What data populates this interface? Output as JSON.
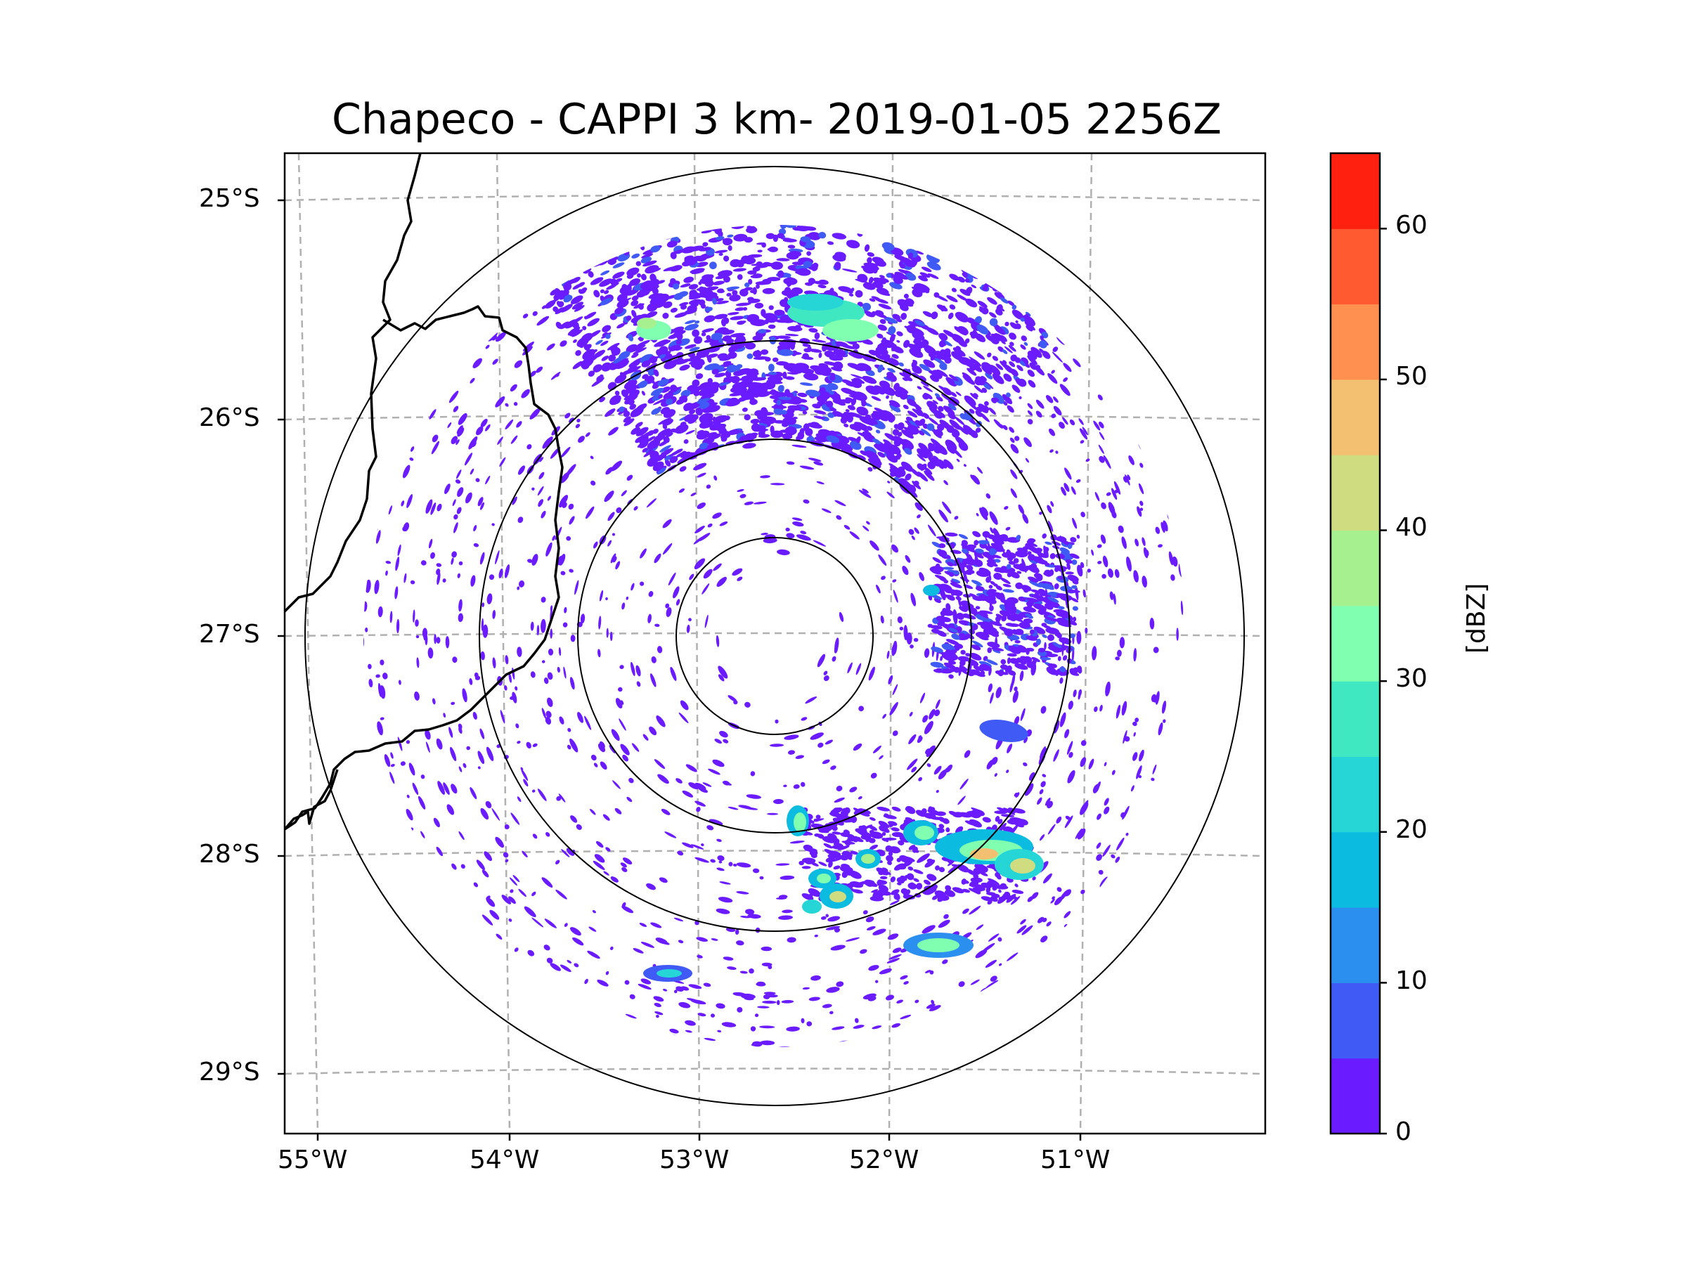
{
  "title": "Chapeco - CAPPI 3 km- 2019-01-05 2256Z",
  "lat_labels": [
    "25°S",
    "26°S",
    "27°S",
    "28°S",
    "29°S"
  ],
  "lon_labels": [
    "55°W",
    "54°W",
    "53°W",
    "52°W",
    "51°W"
  ],
  "colorbar": {
    "label": "[dBZ]",
    "ticks": [
      "0",
      "10",
      "20",
      "30",
      "40",
      "50",
      "60"
    ],
    "levels": [
      0,
      5,
      10,
      15,
      20,
      25,
      30,
      35,
      40,
      45,
      50,
      55,
      60,
      65
    ],
    "colors": [
      "#6a1bff",
      "#3f5af5",
      "#2b8ff0",
      "#0bbbe0",
      "#26d6d6",
      "#3fe8c0",
      "#80ffb0",
      "#a6f090",
      "#cfdd80",
      "#f2c070",
      "#ff9050",
      "#ff5a30",
      "#ff2010"
    ]
  },
  "chart_data": {
    "type": "radar-cappi",
    "station": "Chapeco",
    "product": "CAPPI 3 km",
    "datetime": "2019-01-05 2256Z",
    "units": "dBZ",
    "lon_range": [
      -55.2,
      -50.1
    ],
    "lat_range": [
      -29.3,
      -24.8
    ],
    "radar_center": {
      "lon": -52.6,
      "lat": -27.0
    },
    "range_rings": 4,
    "reflectivity_range": [
      0,
      65
    ],
    "echoes": [
      {
        "region": "north arc (26°S)",
        "max_dbz": 35
      },
      {
        "region": "east (27°S, 51°W)",
        "max_dbz": 25
      },
      {
        "region": "south-east (28°S, 51.7°W)",
        "max_dbz": 50
      },
      {
        "region": "south (28.3°S, 52.3°W)",
        "max_dbz": 45
      }
    ]
  }
}
